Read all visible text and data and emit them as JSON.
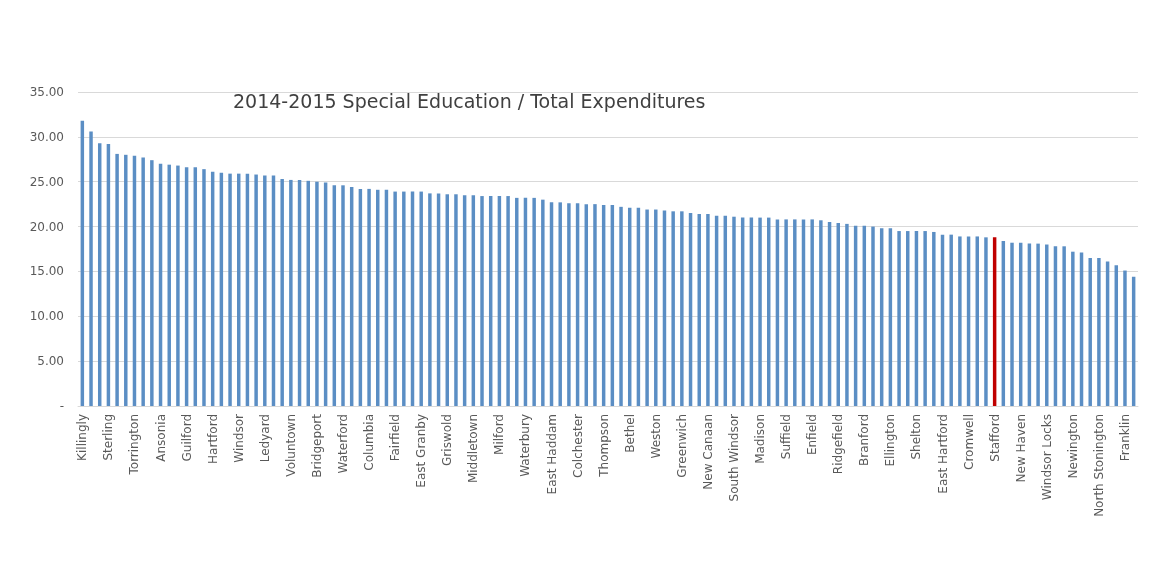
{
  "chart_data": {
    "type": "bar",
    "title": "2014-2015 Special Education / Total Expenditures",
    "categories": [
      "Killingly",
      null,
      null,
      "Sterling",
      null,
      null,
      "Torrington",
      null,
      null,
      "Ansonia",
      null,
      null,
      "Guilford",
      null,
      null,
      "Hartford",
      null,
      null,
      "Windsor",
      null,
      null,
      "Ledyard",
      null,
      null,
      "Voluntown",
      null,
      null,
      "Bridgeport",
      null,
      null,
      "Waterford",
      null,
      null,
      "Columbia",
      null,
      null,
      "Fairfield",
      null,
      null,
      "East Granby",
      null,
      null,
      "Griswold",
      null,
      null,
      "Middletown",
      null,
      null,
      "Milford",
      null,
      null,
      "Waterbury",
      null,
      null,
      "East Haddam",
      null,
      null,
      "Colchester",
      null,
      null,
      "Thompson",
      null,
      null,
      "Bethel",
      null,
      null,
      "Weston",
      null,
      null,
      "Greenwich",
      null,
      null,
      "New Canaan",
      null,
      null,
      "South Windsor",
      null,
      null,
      "Madison",
      null,
      null,
      "Suffield",
      null,
      null,
      "Enfield",
      null,
      null,
      "Ridgefield",
      null,
      null,
      "Branford",
      null,
      null,
      "Ellington",
      null,
      null,
      "Shelton",
      null,
      null,
      "East Hartford",
      null,
      null,
      "Cromwell",
      null,
      null,
      "Stafford",
      null,
      null,
      "New Haven",
      null,
      null,
      "Windsor Locks",
      null,
      null,
      "Newington",
      null,
      null,
      "North Stonington",
      null,
      null,
      "Franklin",
      null
    ],
    "values": [
      31.8,
      30.6,
      29.3,
      29.2,
      28.1,
      28.0,
      27.9,
      27.7,
      27.4,
      27.0,
      26.9,
      26.8,
      26.6,
      26.6,
      26.4,
      26.1,
      26.0,
      25.9,
      25.9,
      25.9,
      25.8,
      25.7,
      25.7,
      25.3,
      25.2,
      25.2,
      25.1,
      25.0,
      24.9,
      24.6,
      24.6,
      24.4,
      24.2,
      24.2,
      24.1,
      24.1,
      23.9,
      23.9,
      23.9,
      23.9,
      23.7,
      23.7,
      23.6,
      23.6,
      23.5,
      23.5,
      23.4,
      23.4,
      23.4,
      23.4,
      23.2,
      23.2,
      23.2,
      23.0,
      22.7,
      22.7,
      22.6,
      22.6,
      22.5,
      22.5,
      22.4,
      22.4,
      22.2,
      22.1,
      22.1,
      21.9,
      21.9,
      21.8,
      21.7,
      21.7,
      21.5,
      21.4,
      21.4,
      21.2,
      21.2,
      21.1,
      21.0,
      21.0,
      21.0,
      21.0,
      20.8,
      20.8,
      20.8,
      20.8,
      20.8,
      20.7,
      20.5,
      20.4,
      20.3,
      20.1,
      20.1,
      20.0,
      19.8,
      19.8,
      19.5,
      19.5,
      19.5,
      19.5,
      19.4,
      19.1,
      19.1,
      18.9,
      18.9,
      18.9,
      18.8,
      18.8,
      18.4,
      18.2,
      18.2,
      18.1,
      18.1,
      18.0,
      17.8,
      17.8,
      17.2,
      17.1,
      16.5,
      16.5,
      16.1,
      15.7,
      15.1,
      14.4
    ],
    "colors": [
      "#5b8ec4",
      "#5b8ec4",
      "#5b8ec4",
      "#5b8ec4",
      "#5b8ec4",
      "#5b8ec4",
      "#5b8ec4",
      "#5b8ec4",
      "#5b8ec4",
      "#5b8ec4",
      "#5b8ec4",
      "#5b8ec4",
      "#5b8ec4",
      "#5b8ec4",
      "#5b8ec4",
      "#5b8ec4",
      "#5b8ec4",
      "#5b8ec4",
      "#5b8ec4",
      "#5b8ec4",
      "#5b8ec4",
      "#5b8ec4",
      "#5b8ec4",
      "#5b8ec4",
      "#5b8ec4",
      "#5b8ec4",
      "#5b8ec4",
      "#5b8ec4",
      "#5b8ec4",
      "#5b8ec4",
      "#5b8ec4",
      "#5b8ec4",
      "#5b8ec4",
      "#5b8ec4",
      "#5b8ec4",
      "#5b8ec4",
      "#5b8ec4",
      "#5b8ec4",
      "#5b8ec4",
      "#5b8ec4",
      "#5b8ec4",
      "#5b8ec4",
      "#5b8ec4",
      "#5b8ec4",
      "#5b8ec4",
      "#5b8ec4",
      "#5b8ec4",
      "#5b8ec4",
      "#5b8ec4",
      "#5b8ec4",
      "#5b8ec4",
      "#5b8ec4",
      "#5b8ec4",
      "#5b8ec4",
      "#5b8ec4",
      "#5b8ec4",
      "#5b8ec4",
      "#5b8ec4",
      "#5b8ec4",
      "#5b8ec4",
      "#5b8ec4",
      "#5b8ec4",
      "#5b8ec4",
      "#5b8ec4",
      "#5b8ec4",
      "#5b8ec4",
      "#5b8ec4",
      "#5b8ec4",
      "#5b8ec4",
      "#5b8ec4",
      "#5b8ec4",
      "#5b8ec4",
      "#5b8ec4",
      "#5b8ec4",
      "#5b8ec4",
      "#5b8ec4",
      "#5b8ec4",
      "#5b8ec4",
      "#5b8ec4",
      "#5b8ec4",
      "#5b8ec4",
      "#5b8ec4",
      "#5b8ec4",
      "#5b8ec4",
      "#5b8ec4",
      "#5b8ec4",
      "#5b8ec4",
      "#5b8ec4",
      "#5b8ec4",
      "#5b8ec4",
      "#5b8ec4",
      "#5b8ec4",
      "#5b8ec4",
      "#5b8ec4",
      "#5b8ec4",
      "#5b8ec4",
      "#5b8ec4",
      "#5b8ec4",
      "#5b8ec4",
      "#5b8ec4",
      "#5b8ec4",
      "#5b8ec4",
      "#5b8ec4",
      "#5b8ec4",
      "#5b8ec4",
      "#c00000",
      "#5b8ec4",
      "#5b8ec4",
      "#5b8ec4",
      "#5b8ec4",
      "#5b8ec4",
      "#5b8ec4",
      "#5b8ec4",
      "#5b8ec4",
      "#5b8ec4",
      "#5b8ec4",
      "#5b8ec4",
      "#5b8ec4",
      "#5b8ec4",
      "#5b8ec4",
      "#5b8ec4",
      "#5b8ec4"
    ],
    "ylim": [
      0,
      35
    ],
    "yticks": [
      {
        "value": 0,
        "label": "-"
      },
      {
        "value": 5,
        "label": "5.00"
      },
      {
        "value": 10,
        "label": "10.00"
      },
      {
        "value": 15,
        "label": "15.00"
      },
      {
        "value": 20,
        "label": "20.00"
      },
      {
        "value": 25,
        "label": "25.00"
      },
      {
        "value": 30,
        "label": "30.00"
      },
      {
        "value": 35,
        "label": "35.00"
      }
    ],
    "grid": "y"
  }
}
